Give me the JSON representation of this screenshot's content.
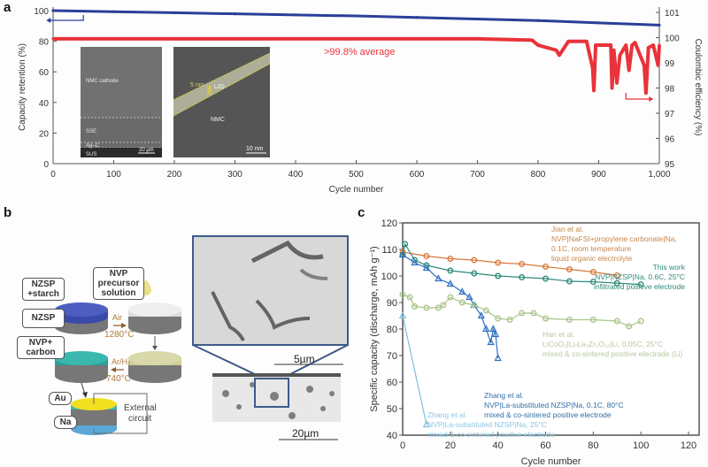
{
  "panels": {
    "a": {
      "label": "a"
    },
    "b": {
      "label": "b"
    },
    "c": {
      "label": "c"
    }
  },
  "chart_data": [
    {
      "id": "panel-a",
      "type": "line",
      "xlabel": "Cycle number",
      "ylabel_left": "Capacity retention (%)",
      "ylabel_right": "Coulombic efficiency (%)",
      "xlim": [
        0,
        1000
      ],
      "ylim_left": [
        0,
        100
      ],
      "ylim_right": [
        95,
        101
      ],
      "xticks": [
        "0",
        "100",
        "200",
        "300",
        "400",
        "500",
        "600",
        "700",
        "800",
        "900",
        "1,000"
      ],
      "yticks_left": [
        "0",
        "20",
        "40",
        "60",
        "80",
        "100"
      ],
      "yticks_right": [
        "95",
        "96",
        "97",
        "98",
        "99",
        "100",
        "101"
      ],
      "annotation": ">99.8% average",
      "series": [
        {
          "name": "Capacity retention",
          "axis": "left",
          "color": "#2a3f9a",
          "x": [
            0,
            100,
            200,
            300,
            400,
            500,
            600,
            700,
            800,
            900,
            1000
          ],
          "y": [
            100,
            99.3,
            98.6,
            97.9,
            97.2,
            96.5,
            95.5,
            94.5,
            93.5,
            92.0,
            90.5
          ]
        },
        {
          "name": "Coulombic efficiency",
          "axis": "right",
          "color": "#e8333a",
          "x": [
            0,
            100,
            200,
            300,
            400,
            500,
            600,
            700,
            790,
            800,
            830,
            835,
            850,
            880,
            890,
            892,
            895,
            920,
            922,
            925,
            930,
            935,
            945,
            950,
            955,
            960,
            975,
            978,
            982,
            990,
            998,
            1000
          ],
          "y": [
            99.95,
            99.95,
            99.95,
            99.95,
            99.95,
            99.95,
            99.95,
            99.95,
            99.9,
            99.7,
            99.5,
            99.3,
            99.85,
            99.85,
            98.8,
            97.9,
            99.7,
            99.7,
            98.0,
            99.5,
            98.2,
            99.3,
            99.7,
            98.7,
            99.7,
            99.8,
            98.9,
            97.8,
            99.6,
            99.7,
            98.9,
            99.7
          ]
        }
      ],
      "insets": [
        {
          "name": "sem-cross-section",
          "labels": [
            "NMC cathode",
            "SSE",
            "Ag–C",
            "SUS"
          ],
          "scale_bar": "20 µm"
        },
        {
          "name": "tem-interface",
          "labels": [
            "5 nm",
            "LZO",
            "NMC"
          ],
          "scale_bar": "10 nm"
        }
      ]
    },
    {
      "id": "panel-c",
      "type": "scatter",
      "xlabel": "Cycle number",
      "ylabel": "Specific capacity (discharge, mAh g⁻¹)",
      "xlim": [
        0,
        120
      ],
      "ylim": [
        40,
        120
      ],
      "xticks": [
        "0",
        "20",
        "40",
        "60",
        "80",
        "100",
        "120"
      ],
      "yticks": [
        "40",
        "50",
        "60",
        "70",
        "80",
        "90",
        "100",
        "110",
        "120"
      ],
      "series": [
        {
          "name": "Jian et al. liquid",
          "color": "#d9783a",
          "marker": "circle",
          "x": [
            0,
            10,
            20,
            30,
            40,
            50,
            60,
            70,
            80,
            90
          ],
          "y": [
            109,
            107.5,
            106.5,
            106,
            105,
            104.5,
            103.5,
            102.5,
            101.5,
            100.2
          ]
        },
        {
          "name": "This work",
          "color": "#2e8a78",
          "marker": "circle",
          "x": [
            0,
            1,
            5,
            10,
            20,
            30,
            40,
            50,
            60,
            70,
            80,
            90,
            100
          ],
          "y": [
            108,
            112,
            106,
            104,
            102,
            101,
            100,
            99.5,
            99,
            98,
            97.8,
            97.3,
            96.8
          ]
        },
        {
          "name": "Zhang et al. 80C",
          "color": "#2f6fc2",
          "marker": "triangle",
          "x": [
            0,
            5,
            10,
            15,
            20,
            25,
            28,
            30,
            33,
            35,
            37,
            38,
            39,
            40
          ],
          "y": [
            108,
            105,
            103,
            99,
            97,
            94,
            92,
            89,
            85,
            80,
            75,
            80,
            78,
            69
          ]
        },
        {
          "name": "Han et al. Li",
          "color": "#a8c48a",
          "marker": "circle",
          "x": [
            0,
            3,
            5,
            10,
            15,
            17,
            20,
            25,
            30,
            35,
            40,
            45,
            50,
            55,
            60,
            70,
            80,
            90,
            95,
            100
          ],
          "y": [
            93,
            92,
            88.5,
            88,
            88,
            89,
            92,
            90,
            89,
            87,
            84,
            83.5,
            86,
            86,
            84,
            83.5,
            83.5,
            83,
            81,
            83
          ]
        },
        {
          "name": "Zhang et al. 25C",
          "color": "#7fbfe0",
          "marker": "triangle",
          "x": [
            0,
            10
          ],
          "y": [
            85,
            44
          ]
        }
      ],
      "annotations": [
        {
          "lines": [
            "Jian et al.",
            "NVP|NaFSI+propylene carbonate|Na,",
            "0.1C, room temperature",
            "liquid organic electrolyte"
          ],
          "color": "#c9864a"
        },
        {
          "lines": [
            "This work",
            "NVP|NZSP|Na, 0.6C, 25°C",
            "infiltrated positive electrode"
          ],
          "color": "#2e8a78"
        },
        {
          "lines": [
            "Han et al.",
            "LiCoO₂|Li₇La₃Zr₂O₁₂|Li, 0.05C, 25°C",
            "mixed & co-sintered positive electrode (Li)"
          ],
          "color": "#b5c99a"
        },
        {
          "lines": [
            "Zhang et al.",
            "NVP|La-substituted NZSP|Na, 0.1C, 80°C",
            "mixed & co-sintered positive electrode"
          ],
          "color": "#2f6fa8"
        },
        {
          "lines": [
            "Zhang et al.",
            "NVP|La-substituted NZSP|Na, 25°C",
            "mixed & co-sintered positive electrode"
          ],
          "color": "#8ec6e0"
        }
      ]
    }
  ],
  "schematic": {
    "boxes": [
      "NZSP +starch",
      "NZSP",
      "NVP+ carbon",
      "NVP precursor solution",
      "Au",
      "Na"
    ],
    "step1": {
      "gas": "Air",
      "temp": "1280°C"
    },
    "step2": {
      "gas": "Ar/H₂",
      "temp": "740°C"
    },
    "circuit_label": "External circuit"
  },
  "micrograph": {
    "scale_top": "5µm",
    "scale_bottom": "20µm"
  }
}
